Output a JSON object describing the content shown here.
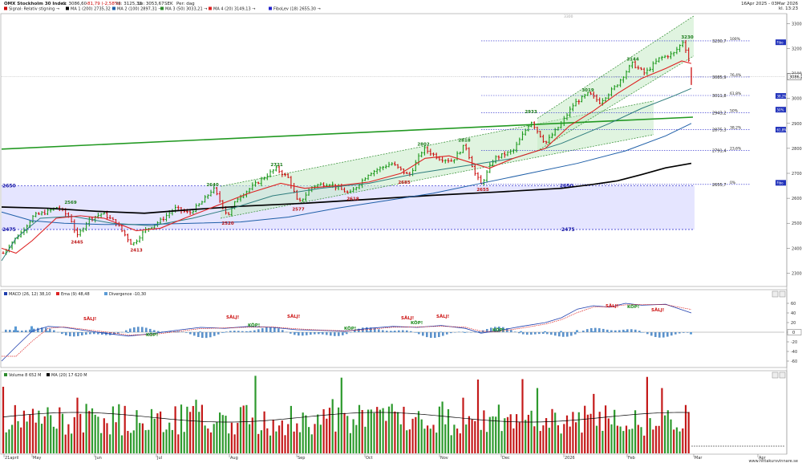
{
  "header": {
    "title": "OMX Stockholm 30 Index",
    "close": "C: 3086,60",
    "change": "-81,79 (-2,58%)",
    "high": "Hi: 3125,38",
    "low": "Lo: 3053,67",
    "currency": "SEK",
    "period": "Per: dag",
    "range": "16Apr 2025 - 03Mar 2026",
    "time": "kl. 13:23",
    "legend": [
      {
        "label": "Signal: Relativ stigning →",
        "color": "#cc0000"
      },
      {
        "label": "MA 1 (200)  2735,32 →",
        "color": "#000000"
      },
      {
        "label": "MA 2 (100)  2897,31 →",
        "color": "#1f5fa8"
      },
      {
        "label": "MA 3 (50)  3033,21 →",
        "color": "#2e8b2e"
      },
      {
        "label": "MA 4 (20)  3149,13 →",
        "color": "#dd2222"
      },
      {
        "label": "FiboLev (18)  2655,30 →",
        "color": "#2222cc"
      }
    ]
  },
  "price_axis": {
    "ticks": [
      "3300",
      "3200",
      "3100",
      "3000",
      "2900",
      "2800",
      "2700",
      "2600",
      "2500",
      "2400",
      "2300"
    ],
    "current_label": "3086,7",
    "box_labels": [
      "Fibo",
      "38,2%",
      "50%",
      "61,8%",
      "Fibo"
    ]
  },
  "fibo": {
    "levels": [
      {
        "value": "3230,7",
        "pct": "100%"
      },
      {
        "value": "3085,9",
        "pct": "76,4%"
      },
      {
        "value": "3011,8",
        "pct": "61,8%"
      },
      {
        "value": "2943,2",
        "pct": "50%"
      },
      {
        "value": "2875,3",
        "pct": "38,2%"
      },
      {
        "value": "2791,4",
        "pct": "23,6%"
      },
      {
        "value": "2655,7",
        "pct": "0%"
      }
    ]
  },
  "annotations": {
    "support_top": "2650",
    "support_bottom": "2475",
    "support_top_right": "2650",
    "support_bottom_right": "2475",
    "highs": [
      "2569",
      "2640",
      "2721",
      "2802",
      "2818",
      "2933",
      "3019",
      "3144",
      "3230"
    ],
    "lows": [
      "2445",
      "2413",
      "2520",
      "2577",
      "2618",
      "2685",
      "2655"
    ],
    "faint_top": "3300"
  },
  "macd": {
    "legend": [
      {
        "label": "MACD (26, 12)  38,10",
        "color": "#1f3fae"
      },
      {
        "label": "Ema (9)  48,48",
        "color": "#dd2222"
      },
      {
        "label": "Divergence  -10,30",
        "color": "#5b9bd5"
      }
    ],
    "ticks": [
      "60",
      "40",
      "20",
      "0",
      "-20",
      "-40",
      "-60"
    ],
    "current": "0",
    "signals": [
      {
        "text": "SÄLJ!",
        "color": "red"
      },
      {
        "text": "KÖP!",
        "color": "green"
      },
      {
        "text": "SÄLJ!",
        "color": "red"
      },
      {
        "text": "KÖP!",
        "color": "green"
      },
      {
        "text": "SÄLJ!",
        "color": "red"
      },
      {
        "text": "KÖP!",
        "color": "green"
      },
      {
        "text": "SÄLJ!",
        "color": "red"
      },
      {
        "text": "KÖP!",
        "color": "green"
      },
      {
        "text": "SÄLJ!",
        "color": "red"
      },
      {
        "text": "KÖP!",
        "color": "green"
      },
      {
        "text": "SÄLJ!",
        "color": "red"
      },
      {
        "text": "KÖP!",
        "color": "green"
      },
      {
        "text": "SÄLJ!",
        "color": "red"
      },
      {
        "text": "KÖP!",
        "color": "green"
      },
      {
        "text": "SÄLJ!",
        "color": "red"
      }
    ]
  },
  "volume": {
    "legend": [
      {
        "label": "Volume  8 652 M",
        "color": "#2e8b2e"
      },
      {
        "label": "MA (20)  17 620 M",
        "color": "#000000"
      }
    ]
  },
  "months": [
    "21april",
    "May",
    "Jun",
    "Jul",
    "Aug",
    "Sep",
    "Oct",
    "Nov",
    "Dec",
    "2026",
    "Feb",
    "Mar",
    "Apr"
  ],
  "footer": "www.hittakursvinnare.se",
  "chart_data": {
    "type": "ohlc",
    "title": "OMX Stockholm 30 Index",
    "period": "16Apr 2025 - 03Mar 2026",
    "ylim": [
      2250,
      3330
    ],
    "last": {
      "open": 3168.39,
      "high": 3125.38,
      "low": 3053.67,
      "close": 3086.6
    },
    "moving_averages": [
      {
        "name": "MA 1 (200)",
        "last": 2735.32
      },
      {
        "name": "MA 2 (100)",
        "last": 2897.31
      },
      {
        "name": "MA 3 (50)",
        "last": 3033.21
      },
      {
        "name": "MA 4 (20)",
        "last": 3149.13
      }
    ],
    "swing_points": [
      {
        "month": "May",
        "value": 2569
      },
      {
        "month": "May",
        "value": 2445
      },
      {
        "month": "Jun",
        "value": 2413
      },
      {
        "month": "Jul",
        "value": 2640
      },
      {
        "month": "Jul",
        "value": 2520
      },
      {
        "month": "Aug",
        "value": 2721
      },
      {
        "month": "Aug",
        "value": 2577
      },
      {
        "month": "Sep",
        "value": 2618
      },
      {
        "month": "Oct",
        "value": 2802
      },
      {
        "month": "Oct",
        "value": 2685
      },
      {
        "month": "Nov",
        "value": 2818
      },
      {
        "month": "Nov",
        "value": 2655
      },
      {
        "month": "Dec",
        "value": 2933
      },
      {
        "month": "Jan",
        "value": 3019
      },
      {
        "month": "Feb",
        "value": 3144
      },
      {
        "month": "Feb",
        "value": 3230
      }
    ],
    "macd_last": {
      "macd": 38.1,
      "ema9": 48.48,
      "divergence": -10.3
    },
    "volume_last": {
      "volume_M": 8652,
      "ma20_M": 17620
    }
  }
}
